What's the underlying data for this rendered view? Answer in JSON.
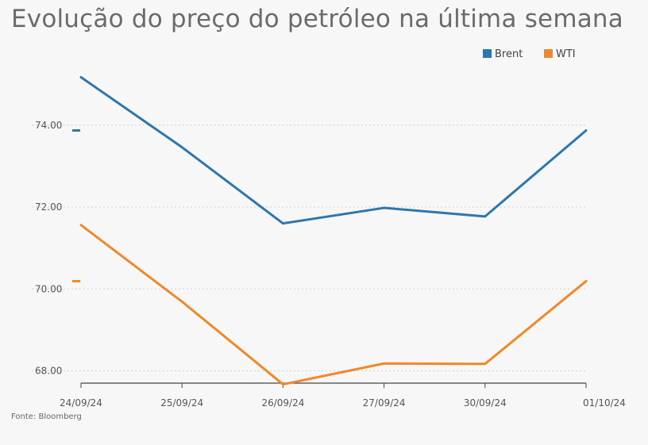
{
  "chart_data": {
    "type": "line",
    "title": "Evolução do preço do petróleo na última semana",
    "categories": [
      "24/09/24",
      "25/09/24",
      "26/09/24",
      "27/09/24",
      "30/09/24",
      "01/10/24"
    ],
    "series": [
      {
        "name": "Brent",
        "color": "#2e77ad",
        "values": [
          75.17,
          73.46,
          71.6,
          71.98,
          71.77,
          73.87
        ]
      },
      {
        "name": "WTI",
        "color": "#f0882a",
        "values": [
          71.56,
          69.69,
          67.67,
          68.18,
          68.17,
          70.19
        ]
      }
    ],
    "yticks": [
      68.0,
      70.0,
      72.0,
      74.0
    ],
    "ytick_labels": [
      "68.00",
      "70.00",
      "72.00",
      "74.00"
    ],
    "ylim": [
      67.7,
      75.7
    ],
    "grid": true,
    "legend": "top-right",
    "source": "Fonte: Bloomberg"
  }
}
